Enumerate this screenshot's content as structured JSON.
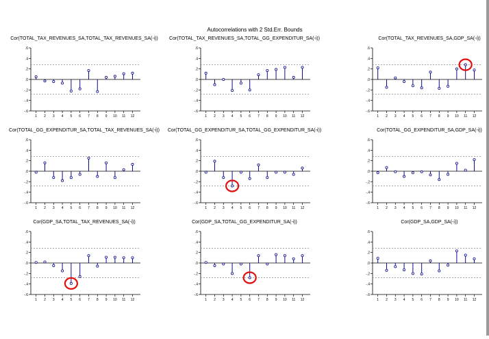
{
  "figure": {
    "title": "Autocorrelations with 2 Std.Err. Bounds",
    "colors": {
      "line": "#0a0a8c",
      "marker_fill": "#ffffff",
      "bound": "#8a8a8a",
      "zero": "#000000",
      "axis": "#000000",
      "highlight": "#e01010"
    }
  },
  "chart_data": [
    {
      "type": "stem",
      "title": "Cor(TOTAL_TAX_REVENUES_SA,TOTAL_TAX_REVENUES_SA(-i))",
      "x": [
        1,
        2,
        3,
        4,
        5,
        6,
        7,
        8,
        9,
        10,
        11,
        12
      ],
      "values": [
        0.05,
        -0.03,
        -0.04,
        -0.07,
        -0.22,
        -0.18,
        0.17,
        -0.23,
        0.04,
        0.06,
        0.11,
        0.12
      ],
      "bound": 0.28,
      "ylim": [
        -0.6,
        0.6
      ],
      "yticks": [
        ".6",
        ".4",
        ".2",
        ".0",
        "-.2",
        "-.4",
        "-.6"
      ],
      "xticks": [
        "1",
        "2",
        "3",
        "4",
        "5",
        "6",
        "7",
        "8",
        "9",
        "10",
        "11",
        "12"
      ],
      "highlights": []
    },
    {
      "type": "stem",
      "title": "Cor(TOTAL_TAX_REVENUES_SA,TOTAL_GG_EXPENDITUR_SA(-i))",
      "x": [
        1,
        2,
        3,
        4,
        5,
        6,
        7,
        8,
        9,
        10,
        11,
        12
      ],
      "values": [
        0.12,
        -0.1,
        0.0,
        -0.21,
        -0.07,
        -0.2,
        0.09,
        0.17,
        0.19,
        0.23,
        0.04,
        0.23
      ],
      "bound": 0.28,
      "ylim": [
        -0.6,
        0.6
      ],
      "yticks": [
        ".6",
        ".4",
        ".2",
        ".0",
        "-.2",
        "-.4",
        "-.6"
      ],
      "xticks": [
        "1",
        "2",
        "3",
        "4",
        "5",
        "6",
        "7",
        "8",
        "9",
        "10",
        "11",
        "12"
      ],
      "highlights": []
    },
    {
      "type": "stem",
      "title": "Cor(TOTAL_TAX_REVENUES_SA,GDP_SA(-i))",
      "x": [
        1,
        2,
        3,
        4,
        5,
        6,
        7,
        8,
        9,
        10,
        11,
        12
      ],
      "values": [
        0.22,
        -0.15,
        0.03,
        -0.04,
        -0.12,
        -0.16,
        0.14,
        -0.17,
        -0.13,
        0.2,
        0.28,
        0.18
      ],
      "bound": 0.28,
      "ylim": [
        -0.6,
        0.6
      ],
      "yticks": [
        ".6",
        ".4",
        ".2",
        ".0",
        "-.2",
        "-.4",
        "-.6"
      ],
      "xticks": [
        "1",
        "2",
        "3",
        "4",
        "5",
        "6",
        "7",
        "8",
        "9",
        "10",
        "11",
        "12"
      ],
      "highlights": [
        11
      ]
    },
    {
      "type": "stem",
      "title": "Cor(TOTAL_GG_EXPENDITUR_SA,TOTAL_TAX_REVENUES_SA(-i))",
      "x": [
        1,
        2,
        3,
        4,
        5,
        6,
        7,
        8,
        9,
        10,
        11,
        12
      ],
      "values": [
        -0.02,
        0.16,
        -0.12,
        -0.18,
        -0.12,
        -0.06,
        0.25,
        -0.1,
        0.16,
        -0.12,
        0.03,
        0.13
      ],
      "bound": 0.28,
      "ylim": [
        -0.6,
        0.6
      ],
      "yticks": [
        ".6",
        ".4",
        ".2",
        ".0",
        "-.2",
        "-.4",
        "-.6"
      ],
      "xticks": [
        "1",
        "2",
        "3",
        "4",
        "5",
        "6",
        "7",
        "8",
        "9",
        "10",
        "11",
        "12"
      ],
      "highlights": []
    },
    {
      "type": "stem",
      "title": "Cor(TOTAL_GG_EXPENDITUR_SA,TOTAL_GG_EXPENDITUR_SA(-i))",
      "x": [
        1,
        2,
        3,
        4,
        5,
        6,
        7,
        8,
        9,
        10,
        11,
        12
      ],
      "values": [
        -0.02,
        0.19,
        -0.12,
        -0.28,
        -0.02,
        -0.14,
        0.12,
        -0.12,
        -0.02,
        -0.02,
        -0.06,
        0.06
      ],
      "bound": 0.28,
      "ylim": [
        -0.6,
        0.6
      ],
      "yticks": [
        ".6",
        ".4",
        ".2",
        ".0",
        "-.2",
        "-.4",
        "-.6"
      ],
      "xticks": [
        "1",
        "2",
        "3",
        "4",
        "5",
        "6",
        "7",
        "8",
        "9",
        "10",
        "11",
        "12"
      ],
      "highlights": [
        4
      ]
    },
    {
      "type": "stem",
      "title": "Cor(TOTAL_GG_EXPENDITUR_SA,GDP_SA(-i))",
      "x": [
        1,
        2,
        3,
        4,
        5,
        6,
        7,
        8,
        9,
        10,
        11,
        12
      ],
      "values": [
        -0.03,
        0.07,
        -0.01,
        -0.1,
        -0.03,
        -0.01,
        -0.07,
        -0.16,
        -0.06,
        0.15,
        0.02,
        0.22
      ],
      "bound": 0.28,
      "ylim": [
        -0.6,
        0.6
      ],
      "yticks": [
        ".6",
        ".4",
        ".2",
        ".0",
        "-.2",
        "-.4",
        "-.6"
      ],
      "xticks": [
        "1",
        "2",
        "3",
        "4",
        "5",
        "6",
        "7",
        "8",
        "9",
        "10",
        "11",
        "12"
      ],
      "highlights": []
    },
    {
      "type": "stem",
      "title": "Cor(GDP_SA,TOTAL_TAX_REVENUES_SA(-i))",
      "x": [
        1,
        2,
        3,
        4,
        5,
        6,
        7,
        8,
        9,
        10,
        11,
        12
      ],
      "values": [
        0.01,
        0.02,
        -0.05,
        -0.15,
        -0.39,
        -0.26,
        0.14,
        -0.06,
        0.11,
        0.11,
        0.1,
        0.1
      ],
      "bound": 0.28,
      "ylim": [
        -0.6,
        0.6
      ],
      "yticks": [
        ".6",
        ".4",
        ".2",
        ".0",
        "-.2",
        "-.4",
        "-.6"
      ],
      "xticks": [
        "1",
        "2",
        "3",
        "4",
        "5",
        "6",
        "7",
        "8",
        "9",
        "10",
        "11",
        "12"
      ],
      "highlights": [
        5
      ]
    },
    {
      "type": "stem",
      "title": "Cor(GDP_SA,TOTAL_GG_EXPENDITUR_SA(-i))",
      "x": [
        1,
        2,
        3,
        4,
        5,
        6,
        7,
        8,
        9,
        10,
        11,
        12
      ],
      "values": [
        0.01,
        -0.05,
        -0.02,
        -0.2,
        -0.02,
        -0.28,
        0.14,
        -0.02,
        0.16,
        0.14,
        0.08,
        0.14
      ],
      "bound": 0.28,
      "ylim": [
        -0.6,
        0.6
      ],
      "yticks": [
        ".6",
        ".4",
        ".2",
        ".0",
        "-.2",
        "-.4",
        "-.6"
      ],
      "xticks": [
        "1",
        "2",
        "3",
        "4",
        "5",
        "6",
        "7",
        "8",
        "9",
        "10",
        "11",
        "12"
      ],
      "highlights": [
        6
      ]
    },
    {
      "type": "stem",
      "title": "Cor(GDP_SA,GDP_SA(-i))",
      "x": [
        1,
        2,
        3,
        4,
        5,
        6,
        7,
        8,
        9,
        10,
        11,
        12
      ],
      "values": [
        0.09,
        -0.14,
        -0.07,
        -0.13,
        -0.2,
        -0.21,
        0.04,
        -0.15,
        -0.04,
        0.23,
        0.15,
        0.08
      ],
      "bound": 0.28,
      "ylim": [
        -0.6,
        0.6
      ],
      "yticks": [
        ".6",
        ".4",
        ".2",
        ".0",
        "-.2",
        "-.4",
        "-.6"
      ],
      "xticks": [
        "1",
        "2",
        "3",
        "4",
        "5",
        "6",
        "7",
        "8",
        "9",
        "10",
        "11",
        "12"
      ],
      "highlights": []
    }
  ]
}
